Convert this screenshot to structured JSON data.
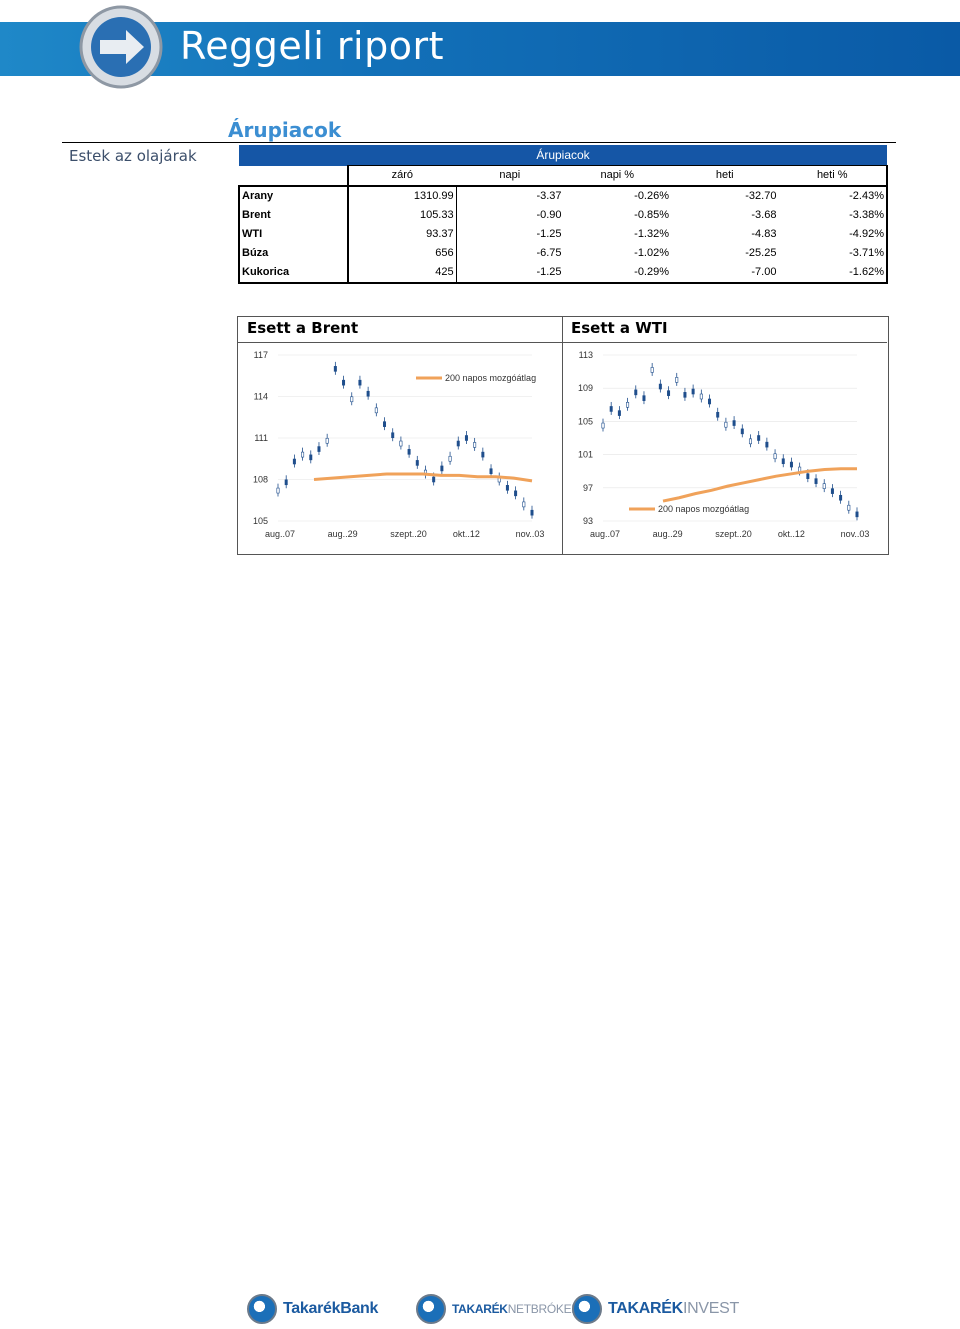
{
  "header": {
    "title": "Reggeli riport"
  },
  "section": {
    "title": "Árupiacok",
    "side_label": "Estek az olajárak"
  },
  "table": {
    "title": "Árupiacok",
    "columns": [
      "záró",
      "napi",
      "napi %",
      "heti",
      "heti %"
    ],
    "rows": [
      {
        "name": "Arany",
        "values": [
          "1310.99",
          "-3.37",
          "-0.26%",
          "-32.70",
          "-2.43%"
        ]
      },
      {
        "name": "Brent",
        "values": [
          "105.33",
          "-0.90",
          "-0.85%",
          "-3.68",
          "-3.38%"
        ]
      },
      {
        "name": "WTI",
        "values": [
          "93.37",
          "-1.25",
          "-1.32%",
          "-4.83",
          "-4.92%"
        ]
      },
      {
        "name": "Búza",
        "values": [
          "656",
          "-6.75",
          "-1.02%",
          "-25.25",
          "-3.71%"
        ]
      },
      {
        "name": "Kukorica",
        "values": [
          "425",
          "-1.25",
          "-0.29%",
          "-7.00",
          "-1.62%"
        ]
      }
    ]
  },
  "chart_data": [
    {
      "type": "line",
      "title": "Esett a Brent",
      "series": [
        {
          "name": "200 napos mozgóátlag",
          "values": [
            108.0,
            108.1,
            108.2,
            108.3,
            108.4,
            108.4,
            108.4,
            108.3,
            108.3,
            108.2,
            108.2,
            108.1,
            107.9
          ]
        }
      ],
      "x_ticks": [
        "aug..07",
        "aug..29",
        "szept..20",
        "okt..12",
        "nov..03"
      ],
      "y_ticks": [
        "105",
        "108",
        "111",
        "114",
        "117"
      ],
      "ylim": [
        105,
        117
      ],
      "price": [
        107.2,
        107.8,
        109.3,
        109.8,
        109.6,
        110.2,
        110.8,
        116.0,
        115.0,
        113.8,
        115.0,
        114.2,
        113.0,
        112.0,
        111.2,
        110.6,
        110.0,
        109.2,
        108.5,
        108.0,
        108.8,
        109.5,
        110.6,
        111.0,
        110.5,
        109.8,
        108.6,
        108.0,
        107.4,
        107.0,
        106.2,
        105.6
      ],
      "line_color": "#f0a25a",
      "candle_color": "#1f4e8c"
    },
    {
      "type": "line",
      "title": "Esett a WTI",
      "series": [
        {
          "name": "200 napos mozgóátlag",
          "values": [
            95.4,
            95.8,
            96.3,
            96.7,
            97.2,
            97.6,
            98.0,
            98.4,
            98.7,
            99.0,
            99.2,
            99.3,
            99.3
          ]
        }
      ],
      "x_ticks": [
        "aug..07",
        "aug..29",
        "szept..20",
        "okt..12",
        "nov..03"
      ],
      "y_ticks": [
        "93",
        "97",
        "101",
        "105",
        "109",
        "113"
      ],
      "ylim": [
        93,
        113
      ],
      "price": [
        104.5,
        106.5,
        106.0,
        107.0,
        108.5,
        107.8,
        111.2,
        109.2,
        108.4,
        110.0,
        108.2,
        108.6,
        108.0,
        107.4,
        105.8,
        104.6,
        104.8,
        103.8,
        102.6,
        103.0,
        102.2,
        100.8,
        100.2,
        99.8,
        99.2,
        98.4,
        97.8,
        97.2,
        96.6,
        95.8,
        94.6,
        93.8
      ],
      "line_color": "#f0a25a",
      "candle_color": "#1f4e8c"
    }
  ],
  "footer": {
    "logos": [
      {
        "text": "TakarékBank",
        "light": ""
      },
      {
        "text": "TAKARÉK",
        "light": "NETBRÓKER"
      },
      {
        "text": "TAKARÉK",
        "light": "INVEST"
      }
    ]
  }
}
